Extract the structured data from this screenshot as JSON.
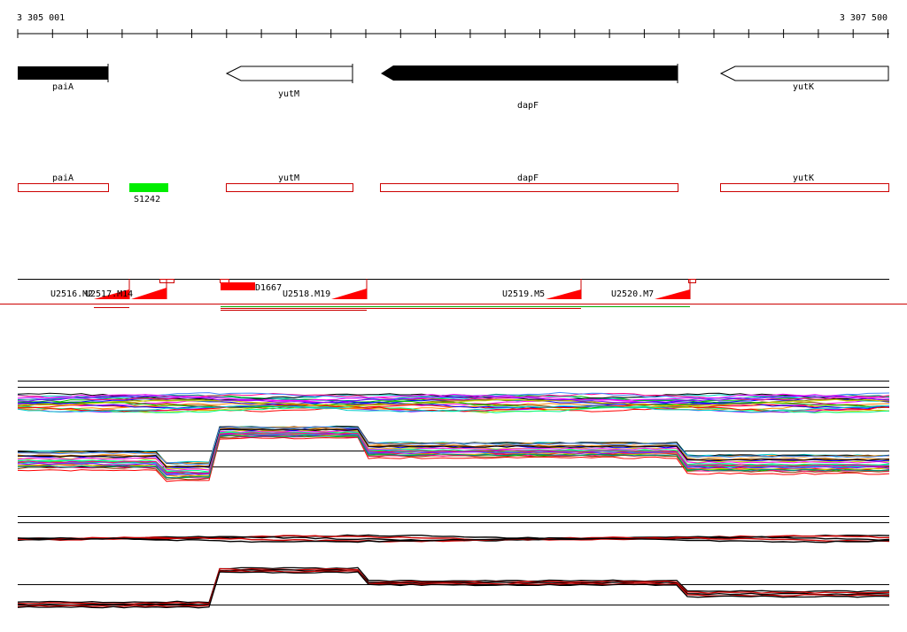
{
  "ruler": {
    "start": "3 305 001",
    "end": "3 307 500"
  },
  "genes": [
    "paiA",
    "yutM",
    "dapF",
    "yutK"
  ],
  "features": {
    "green_box": "S1242",
    "red_box": "D1667",
    "segments": [
      "U2516.M2",
      "U2517.M14",
      "U2518.M19",
      "U2519.M5",
      "U2520.M7"
    ]
  },
  "colors": {
    "gene_solid": "#000000",
    "gene_outline": "#000000",
    "annotation_box": "#cc0000",
    "green_feature": "#00ee00",
    "red_feature": "#ff0000",
    "separator": "#cc0000"
  }
}
